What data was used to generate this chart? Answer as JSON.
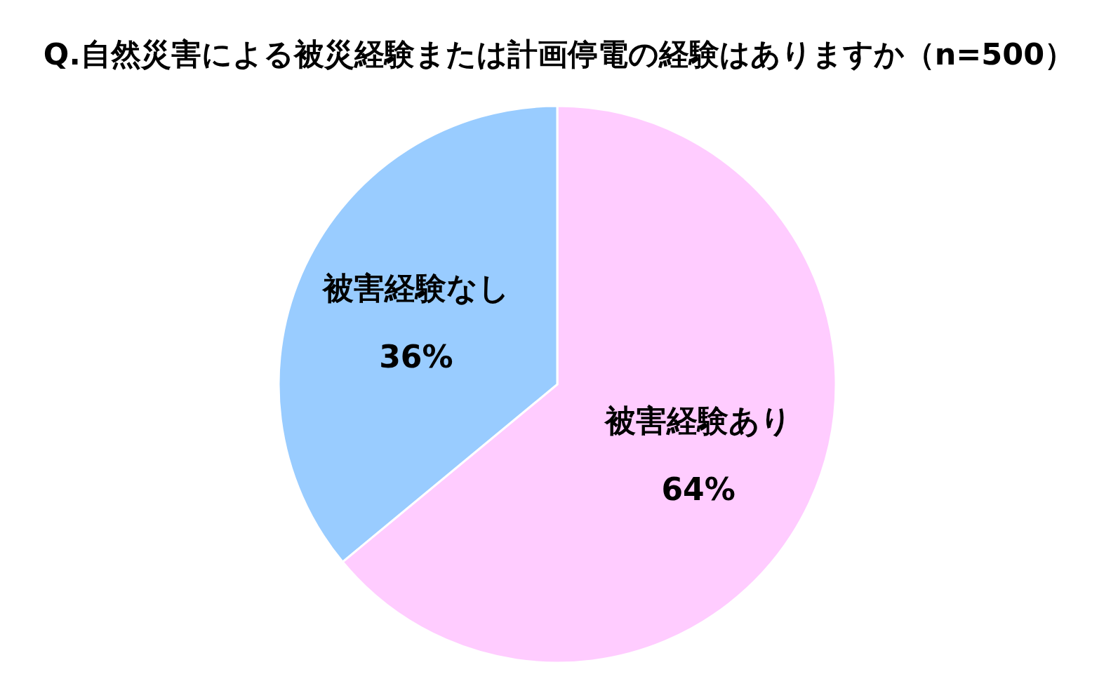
{
  "chart_data": {
    "type": "pie",
    "title": "Q.自然災害による被災経験または計画停電の経験はありますか（n=500）",
    "categories": [
      "被害経験あり",
      "被害経験なし"
    ],
    "values": [
      64,
      36
    ],
    "colors": [
      "#ffccff",
      "#99ccff"
    ],
    "value_labels": [
      "64%",
      "36%"
    ]
  }
}
